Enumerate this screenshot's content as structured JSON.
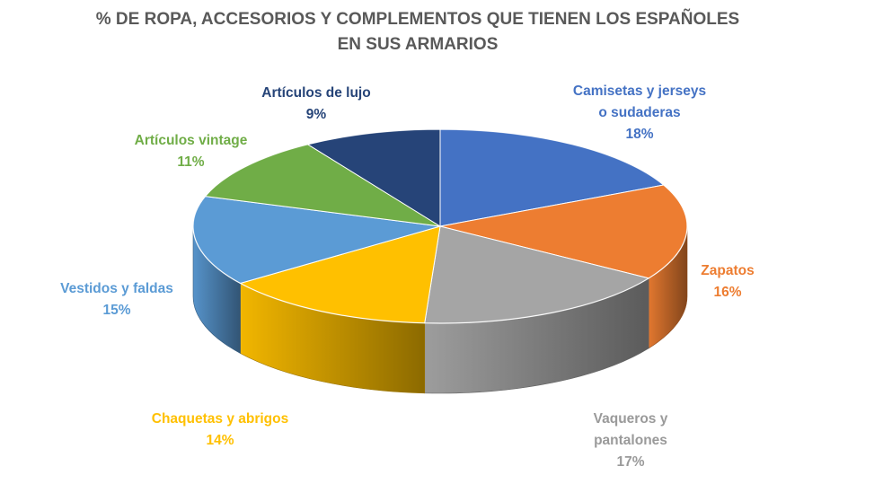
{
  "chart_data": {
    "type": "pie",
    "title_lines": [
      "% DE ROPA, ACCESORIOS Y COMPLEMENTOS QUE TIENEN LOS ESPAÑOLES",
      "EN SUS ARMARIOS"
    ],
    "slices": [
      {
        "label_lines": [
          "Camisetas y jerseys",
          "o sudaderas"
        ],
        "value": 18,
        "value_label": "18%",
        "color": "#4472C4"
      },
      {
        "label_lines": [
          "Zapatos"
        ],
        "value": 16,
        "value_label": "16%",
        "color": "#ED7D31"
      },
      {
        "label_lines": [
          "Vaqueros y",
          "pantalones"
        ],
        "value": 17,
        "value_label": "17%",
        "color": "#A5A5A5"
      },
      {
        "label_lines": [
          "Chaquetas y abrigos"
        ],
        "value": 14,
        "value_label": "14%",
        "color": "#FFC000"
      },
      {
        "label_lines": [
          "Vestidos y faldas"
        ],
        "value": 15,
        "value_label": "15%",
        "color": "#5B9BD5"
      },
      {
        "label_lines": [
          "Artículos vintage"
        ],
        "value": 11,
        "value_label": "11%",
        "color": "#70AD47"
      },
      {
        "label_lines": [
          "Artículos de lujo"
        ],
        "value": 9,
        "value_label": "9%",
        "color": "#264478"
      }
    ],
    "style": "3d-pie",
    "legend": "none"
  }
}
